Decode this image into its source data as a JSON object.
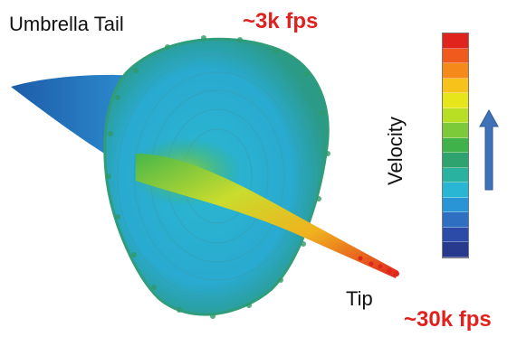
{
  "labels": {
    "title": "Umbrella Tail",
    "fps_top": "~3k fps",
    "tip": "Tip",
    "fps_bottom": "~30k fps",
    "velocity": "Velocity"
  },
  "colorbar": {
    "colors_top_to_bottom": [
      "#e0231d",
      "#f05a1c",
      "#f58a1a",
      "#f7c21a",
      "#e6e61a",
      "#b9df24",
      "#7cc93a",
      "#3fb34a",
      "#2fa36f",
      "#2ab2a0",
      "#29b6d4",
      "#2a95d6",
      "#2e6fc2",
      "#2c4aa7",
      "#273a8e"
    ]
  },
  "colors": {
    "red_text": "#e0211e",
    "arrow": "#3f72b8"
  },
  "icons": {
    "arrow": "up-arrow-icon"
  }
}
